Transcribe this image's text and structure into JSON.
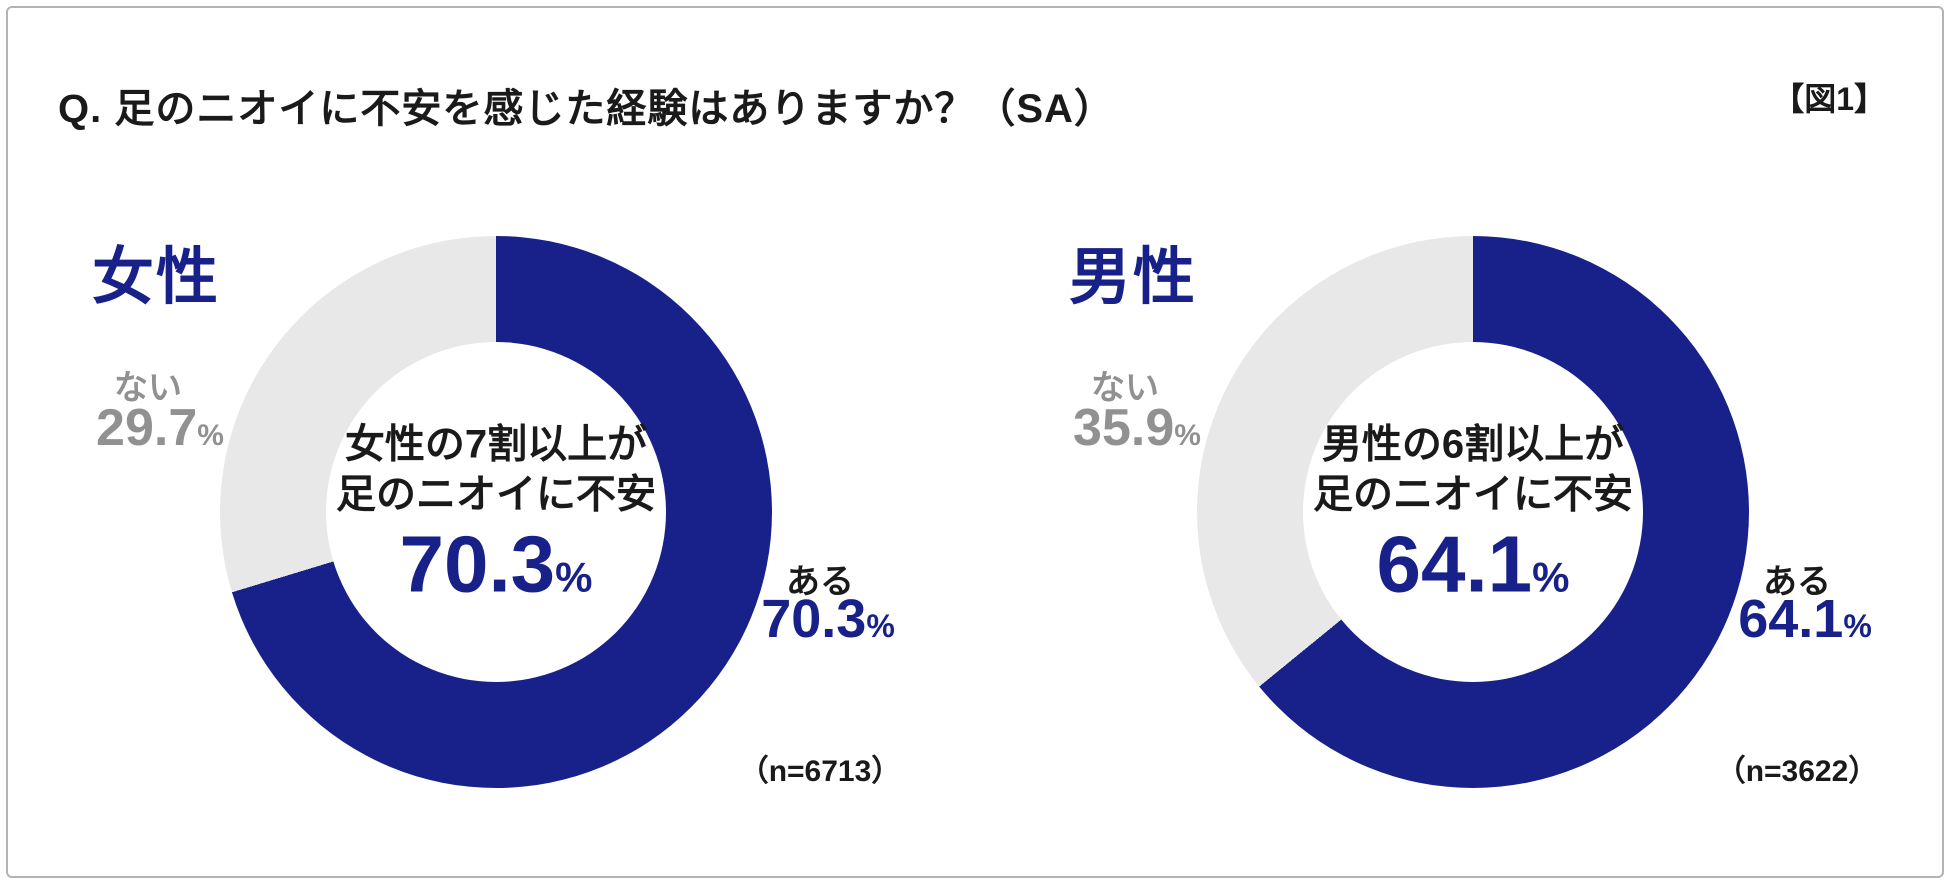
{
  "header": {
    "question": "Q. 足のニオイに不安を感じた経験はありますか？（SA）",
    "figure_label": "【図1】"
  },
  "colors": {
    "navy": "#172189",
    "gray_segment": "#e8e8e8",
    "gray_text": "#919191",
    "black_text": "#1a1a1a",
    "border": "#b3b3b3"
  },
  "chart_data": [
    {
      "type": "pie",
      "variant": "donut",
      "title": "女性",
      "categories": [
        "ある",
        "ない"
      ],
      "values": [
        70.3,
        29.7
      ],
      "unit": "%",
      "sample_size": 6713,
      "start_angle_deg": 0,
      "direction": "clockwise",
      "center_annotation": "女性の7割以上が足のニオイに不安 70.3%",
      "segment_colors": [
        "#172189",
        "#e8e8e8"
      ]
    },
    {
      "type": "pie",
      "variant": "donut",
      "title": "男性",
      "categories": [
        "ある",
        "ない"
      ],
      "values": [
        64.1,
        35.9
      ],
      "unit": "%",
      "sample_size": 3622,
      "start_angle_deg": 0,
      "direction": "clockwise",
      "center_annotation": "男性の6割以上が足のニオイに不安 64.1%",
      "segment_colors": [
        "#172189",
        "#e8e8e8"
      ]
    }
  ],
  "charts": {
    "female": {
      "title": "女性",
      "no_label": "ない",
      "no_value": "29.7",
      "yes_label": "ある",
      "yes_value": "70.3",
      "center_line1": "女性の7割以上が",
      "center_line2": "足のニオイに不安",
      "center_value": "70.3",
      "percent_sign": "%",
      "n_label": "（n=6713）",
      "donut_percent": 70.3
    },
    "male": {
      "title": "男性",
      "no_label": "ない",
      "no_value": "35.9",
      "yes_label": "ある",
      "yes_value": "64.1",
      "center_line1": "男性の6割以上が",
      "center_line2": "足のニオイに不安",
      "center_value": "64.1",
      "percent_sign": "%",
      "n_label": "（n=3622）",
      "donut_percent": 64.1
    }
  }
}
